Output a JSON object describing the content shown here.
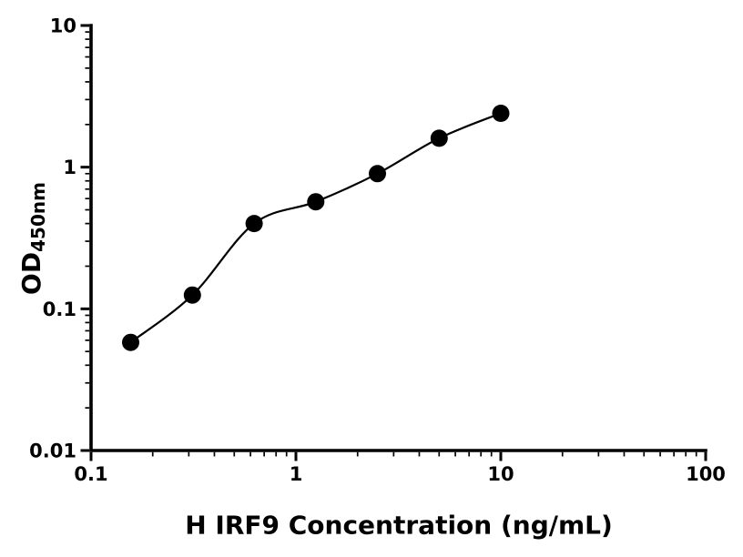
{
  "chart_data": {
    "type": "scatter",
    "subtype": "elisa-standard-curve",
    "x_scale": "log",
    "y_scale": "log",
    "x": [
      0.156,
      0.3125,
      0.625,
      1.25,
      2.5,
      5,
      10
    ],
    "y": [
      0.058,
      0.125,
      0.4,
      0.57,
      0.9,
      1.6,
      2.4
    ],
    "fit": "smooth monotonic curve through points",
    "title": "",
    "xlabel": "H IRF9 Concentration (ng/mL)",
    "ylabel_main": "OD",
    "ylabel_sub": "450nm",
    "xlim": [
      0.1,
      100
    ],
    "ylim": [
      0.01,
      10
    ],
    "x_ticks": [
      0.1,
      1,
      10,
      100
    ],
    "x_tick_labels": [
      "0.1",
      "1",
      "10",
      "100"
    ],
    "y_ticks": [
      0.01,
      0.1,
      1,
      10
    ],
    "y_tick_labels": [
      "0.01",
      "0.1",
      "1",
      "10"
    ],
    "minor_ticks": true,
    "grid": false,
    "legend": false,
    "axis_color": "#000000",
    "marker_color": "#000000",
    "line_color": "#000000",
    "background_color": "#ffffff"
  }
}
